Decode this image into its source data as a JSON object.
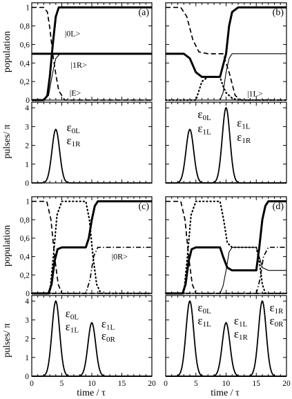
{
  "chart_data": {
    "type": "line",
    "x_axis_label": "time / τ",
    "x_ticks": [
      "0",
      "5",
      "10",
      "15",
      "20"
    ],
    "xlim": [
      0,
      20
    ],
    "population_ylabel": "population",
    "population_ticks": [
      "0",
      "0,2",
      "0,4",
      "0,6",
      "0,8",
      "1"
    ],
    "population_ylim": [
      0,
      1.05
    ],
    "pulse_ylabel": "pulses/ π",
    "pulse_ticks": [
      "0",
      "1",
      "2",
      "3",
      "4"
    ],
    "pulse_ylim": [
      0,
      4.3
    ],
    "panels": [
      {
        "label": "(a)",
        "population_series": [
          {
            "style": "thick-solid",
            "points": [
              [
                0,
                0
              ],
              [
                2,
                0
              ],
              [
                2.6,
                0.05
              ],
              [
                3,
                0.25
              ],
              [
                3.5,
                0.6
              ],
              [
                4,
                0.9
              ],
              [
                4.5,
                1.0
              ],
              [
                20,
                1.0
              ]
            ]
          },
          {
            "style": "dashed",
            "points": [
              [
                0,
                1
              ],
              [
                2,
                1
              ],
              [
                2.6,
                0.95
              ],
              [
                3,
                0.78
              ],
              [
                3.5,
                0.5
              ],
              [
                4,
                0.28
              ],
              [
                4.5,
                0.1
              ],
              [
                5.5,
                0
              ],
              [
                20,
                0
              ]
            ]
          },
          {
            "style": "thick-solid",
            "points": [
              [
                0,
                0.5
              ],
              [
                20,
                0.5
              ]
            ]
          },
          {
            "style": "thin-solid",
            "points": [
              [
                0,
                0
              ],
              [
                2,
                0
              ],
              [
                2.8,
                0.05
              ],
              [
                3.5,
                0.3
              ],
              [
                4,
                0.45
              ],
              [
                4.7,
                0.5
              ],
              [
                20,
                0.5
              ]
            ]
          }
        ],
        "state_labels": [
          {
            "text": "|0L>",
            "x": 5.5,
            "y": 0.72
          },
          {
            "text": "|1R>",
            "x": 6.5,
            "y": 0.38
          },
          {
            "text": "|E>",
            "x": 6.3,
            "y": 0.08
          }
        ],
        "pulses": [
          {
            "center": 4,
            "amplitude": 2.85
          }
        ],
        "pulse_labels": [
          {
            "text": "ε",
            "sub": "0L",
            "x": 5.8,
            "y": 2.75
          },
          {
            "text": "ε",
            "sub": "1R",
            "x": 5.8,
            "y": 2.05
          }
        ]
      },
      {
        "label": "(b)",
        "population_series": [
          {
            "style": "thick-solid",
            "points": [
              [
                0,
                0.5
              ],
              [
                3,
                0.5
              ],
              [
                4,
                0.45
              ],
              [
                5,
                0.3
              ],
              [
                6,
                0.25
              ],
              [
                9,
                0.25
              ],
              [
                10,
                0.5
              ],
              [
                10.5,
                0.8
              ],
              [
                11,
                0.95
              ],
              [
                12,
                1.0
              ],
              [
                20,
                1.0
              ]
            ]
          },
          {
            "style": "dashed",
            "points": [
              [
                0,
                1
              ],
              [
                2.5,
                1
              ],
              [
                3.5,
                0.9
              ],
              [
                4.5,
                0.65
              ],
              [
                5.5,
                0.52
              ],
              [
                7,
                0.5
              ],
              [
                9.5,
                0.5
              ],
              [
                10.5,
                0.3
              ],
              [
                11.5,
                0.05
              ],
              [
                12.5,
                0
              ],
              [
                20,
                0
              ]
            ]
          },
          {
            "style": "dotted",
            "points": [
              [
                0,
                0
              ],
              [
                5,
                0
              ],
              [
                5.5,
                0.1
              ],
              [
                6,
                0.2
              ],
              [
                7,
                0.25
              ],
              [
                9,
                0.25
              ],
              [
                9.5,
                0.15
              ],
              [
                10,
                0.08
              ],
              [
                11,
                0.02
              ],
              [
                12,
                0
              ],
              [
                20,
                0
              ]
            ]
          },
          {
            "style": "thin-solid",
            "points": [
              [
                0,
                0
              ],
              [
                9,
                0
              ],
              [
                9.5,
                0.08
              ],
              [
                10,
                0.3
              ],
              [
                10.5,
                0.45
              ],
              [
                11,
                0.5
              ],
              [
                20,
                0.5
              ]
            ]
          }
        ],
        "state_labels": [
          {
            "text": "|1L>",
            "x": 13.5,
            "y": 0.07
          }
        ],
        "pulses": [
          {
            "center": 4,
            "amplitude": 2.85
          },
          {
            "center": 10,
            "amplitude": 4.0
          }
        ],
        "pulse_labels": [
          {
            "text": "ε",
            "sub": "0L",
            "x": 5.3,
            "y": 3.45
          },
          {
            "text": "ε",
            "sub": "1L",
            "x": 5.3,
            "y": 2.7
          },
          {
            "text": "ε",
            "sub": "1L",
            "x": 11.8,
            "y": 3.0
          },
          {
            "text": "ε",
            "sub": "1R",
            "x": 11.8,
            "y": 2.25
          }
        ]
      },
      {
        "label": "(c)",
        "population_series": [
          {
            "style": "thick-solid",
            "points": [
              [
                0,
                0
              ],
              [
                2.8,
                0
              ],
              [
                3.3,
                0.1
              ],
              [
                3.8,
                0.35
              ],
              [
                4.3,
                0.48
              ],
              [
                5,
                0.5
              ],
              [
                9,
                0.5
              ],
              [
                9.5,
                0.6
              ],
              [
                10,
                0.8
              ],
              [
                10.5,
                0.95
              ],
              [
                11,
                1.0
              ],
              [
                20,
                1.0
              ]
            ]
          },
          {
            "style": "dashed",
            "points": [
              [
                0,
                1
              ],
              [
                2.5,
                1
              ],
              [
                3.2,
                0.8
              ],
              [
                3.8,
                0.4
              ],
              [
                4.4,
                0.1
              ],
              [
                5,
                0
              ],
              [
                20,
                0
              ]
            ]
          },
          {
            "style": "dotted",
            "points": [
              [
                0,
                0
              ],
              [
                3,
                0
              ],
              [
                3.6,
                0.4
              ],
              [
                4.2,
                0.85
              ],
              [
                5,
                1.0
              ],
              [
                9,
                1.0
              ],
              [
                9.6,
                0.8
              ],
              [
                10.2,
                0.4
              ],
              [
                10.8,
                0.1
              ],
              [
                11.5,
                0
              ],
              [
                20,
                0
              ]
            ]
          },
          {
            "style": "dash-dot",
            "points": [
              [
                0,
                0
              ],
              [
                9,
                0
              ],
              [
                9.7,
                0.15
              ],
              [
                10.3,
                0.4
              ],
              [
                11,
                0.5
              ],
              [
                20,
                0.5
              ]
            ]
          }
        ],
        "state_labels": [
          {
            "text": "|0R>",
            "x": 13.3,
            "y": 0.4
          }
        ],
        "pulses": [
          {
            "center": 4,
            "amplitude": 4.0
          },
          {
            "center": 10,
            "amplitude": 2.85
          }
        ],
        "pulse_labels": [
          {
            "text": "ε",
            "sub": "0L",
            "x": 5.6,
            "y": 3.15
          },
          {
            "text": "ε",
            "sub": "1L",
            "x": 5.6,
            "y": 2.45
          },
          {
            "text": "ε",
            "sub": "1L",
            "x": 11.6,
            "y": 2.6
          },
          {
            "text": "ε",
            "sub": "0R",
            "x": 11.6,
            "y": 1.95
          }
        ]
      },
      {
        "label": "(d)",
        "population_series": [
          {
            "style": "thick-solid",
            "points": [
              [
                0,
                0
              ],
              [
                2.8,
                0
              ],
              [
                3.3,
                0.1
              ],
              [
                3.8,
                0.35
              ],
              [
                4.3,
                0.48
              ],
              [
                5,
                0.5
              ],
              [
                9,
                0.5
              ],
              [
                9.5,
                0.4
              ],
              [
                10.2,
                0.28
              ],
              [
                11,
                0.25
              ],
              [
                15,
                0.25
              ],
              [
                15.5,
                0.5
              ],
              [
                16,
                0.8
              ],
              [
                16.5,
                0.95
              ],
              [
                17,
                1.0
              ],
              [
                20,
                1.0
              ]
            ]
          },
          {
            "style": "dashed",
            "points": [
              [
                0,
                1
              ],
              [
                2.5,
                1
              ],
              [
                3.2,
                0.8
              ],
              [
                3.8,
                0.4
              ],
              [
                4.4,
                0.1
              ],
              [
                5,
                0
              ],
              [
                20,
                0
              ]
            ]
          },
          {
            "style": "dotted",
            "points": [
              [
                0,
                0
              ],
              [
                3,
                0
              ],
              [
                3.6,
                0.4
              ],
              [
                4.2,
                0.85
              ],
              [
                5,
                1.0
              ],
              [
                9,
                1.0
              ],
              [
                9.6,
                0.8
              ],
              [
                10.2,
                0.55
              ],
              [
                11,
                0.5
              ],
              [
                15,
                0.5
              ],
              [
                15.5,
                0.35
              ],
              [
                16,
                0.1
              ],
              [
                16.5,
                0
              ],
              [
                20,
                0
              ]
            ]
          },
          {
            "style": "thin-solid",
            "points": [
              [
                0,
                0
              ],
              [
                9,
                0
              ],
              [
                9.5,
                0.08
              ],
              [
                10,
                0.25
              ],
              [
                10.5,
                0.45
              ],
              [
                11,
                0.5
              ],
              [
                15,
                0.5
              ],
              [
                15.5,
                0.4
              ],
              [
                16,
                0.28
              ],
              [
                17,
                0.25
              ],
              [
                20,
                0.25
              ]
            ]
          },
          {
            "style": "dash-dot",
            "points": [
              [
                0,
                0
              ],
              [
                15,
                0
              ],
              [
                15.6,
                0.15
              ],
              [
                16.2,
                0.4
              ],
              [
                17,
                0.5
              ],
              [
                20,
                0.5
              ]
            ]
          }
        ],
        "state_labels": [],
        "pulses": [
          {
            "center": 4,
            "amplitude": 4.0
          },
          {
            "center": 10,
            "amplitude": 2.85
          },
          {
            "center": 16,
            "amplitude": 4.0
          }
        ],
        "pulse_labels": [
          {
            "text": "ε",
            "sub": "0L",
            "x": 5.3,
            "y": 3.45
          },
          {
            "text": "ε",
            "sub": "1L",
            "x": 5.3,
            "y": 2.75
          },
          {
            "text": "ε",
            "sub": "1L",
            "x": 11.3,
            "y": 2.75
          },
          {
            "text": "ε",
            "sub": "1R",
            "x": 11.3,
            "y": 2.05
          },
          {
            "text": "ε",
            "sub": "1R",
            "x": 17.2,
            "y": 3.45
          },
          {
            "text": "ε",
            "sub": "0R",
            "x": 17.2,
            "y": 2.75
          }
        ]
      }
    ]
  }
}
